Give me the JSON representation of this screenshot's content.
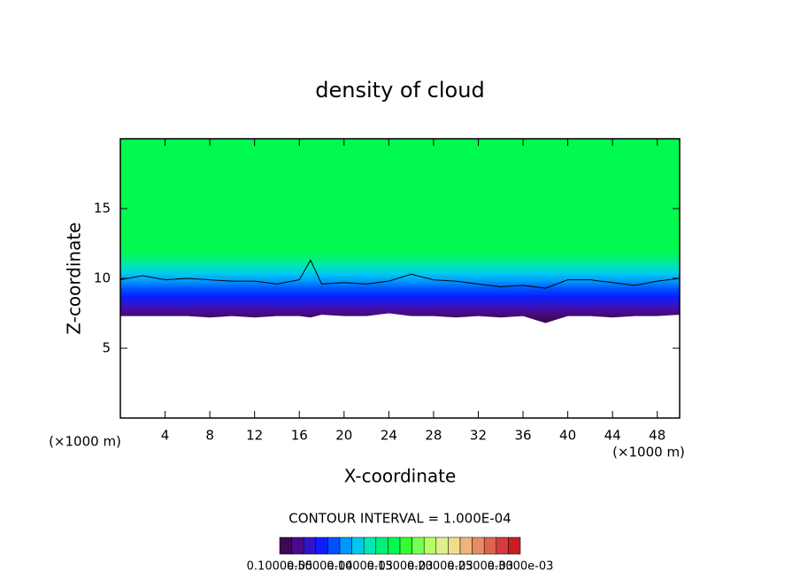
{
  "chart_data": {
    "type": "contour",
    "title": "density of cloud",
    "xlabel": "X-coordinate",
    "ylabel": "Z-coordinate",
    "x_unit": "(×1000 m)",
    "x_unit_right": "(×1000 m)",
    "contour_interval": "CONTOUR INTERVAL = 1.000E-04",
    "xlim": [
      0,
      50
    ],
    "ylim": [
      0,
      20
    ],
    "xticks": [
      4,
      8,
      12,
      16,
      20,
      24,
      28,
      32,
      36,
      40,
      44,
      48
    ],
    "yticks": [
      5,
      10,
      15
    ],
    "x": [
      0,
      2,
      4,
      6,
      8,
      10,
      12,
      14,
      16,
      17,
      18,
      20,
      22,
      24,
      26,
      28,
      30,
      32,
      34,
      36,
      38,
      40,
      42,
      44,
      46,
      48,
      50
    ],
    "series": [
      {
        "color": "#000000",
        "values": [
          9.9,
          10.2,
          9.9,
          10.0,
          9.9,
          9.8,
          9.8,
          9.6,
          9.9,
          11.3,
          9.6,
          9.7,
          9.6,
          9.8,
          10.3,
          9.9,
          9.8,
          9.6,
          9.4,
          9.5,
          9.3,
          9.9,
          9.9,
          9.7,
          9.5,
          9.8,
          10.0
        ]
      },
      {
        "color": "#4b0a8c",
        "values": [
          7.3,
          7.3,
          7.3,
          7.3,
          7.2,
          7.3,
          7.2,
          7.3,
          7.3,
          7.2,
          7.4,
          7.3,
          7.3,
          7.5,
          7.3,
          7.3,
          7.2,
          7.3,
          7.2,
          7.3,
          6.8,
          7.3,
          7.3,
          7.2,
          7.3,
          7.3,
          7.4
        ]
      }
    ],
    "colormap": [
      "#3c0a50",
      "#4b0a8c",
      "#3214c8",
      "#0a1eff",
      "#0050ff",
      "#0096ff",
      "#00c8f0",
      "#00e6b4",
      "#00f078",
      "#00fa50",
      "#32ff32",
      "#78ff50",
      "#b4ff64",
      "#dcf08c",
      "#f0dc8c",
      "#f0b478",
      "#e68c64",
      "#dc6450",
      "#d23c3c",
      "#c81e28"
    ],
    "colorbar_ticks": [
      {
        "value": 1e-06,
        "label": "0.1000e-05"
      },
      {
        "value": 5e-05,
        "label": "0.5000e-04"
      },
      {
        "value": 0.0001,
        "label": "0.1000e-03"
      },
      {
        "value": 0.00015,
        "label": "0.1500e-03"
      },
      {
        "value": 0.0002,
        "label": "0.2000e-03"
      },
      {
        "value": 0.00025,
        "label": "0.2500e-03"
      },
      {
        "value": 0.0003,
        "label": "0.3000e-03"
      }
    ]
  }
}
